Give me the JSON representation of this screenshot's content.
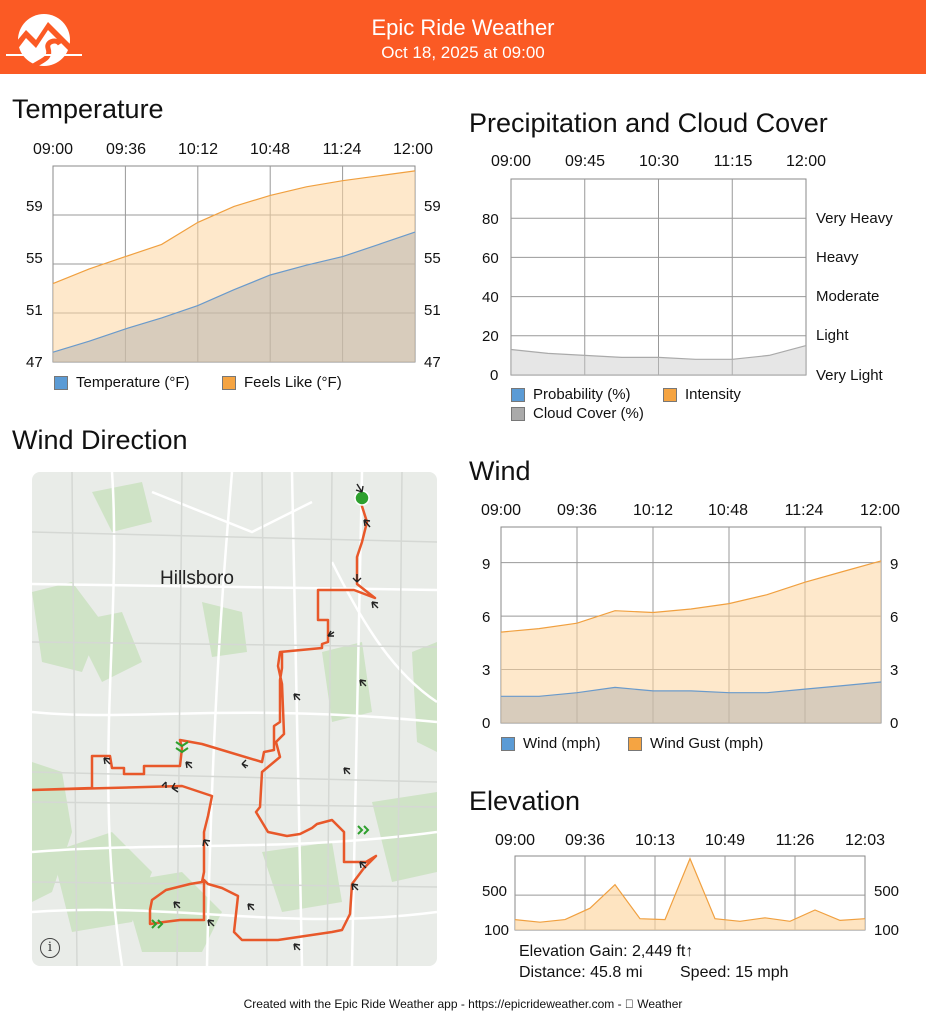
{
  "header": {
    "title": "Epic Ride Weather",
    "subtitle": "Oct 18, 2025 at 09:00",
    "bg_color": "#fb5a24"
  },
  "temperature": {
    "title": "Temperature",
    "x_ticks": [
      "09:00",
      "09:36",
      "10:12",
      "10:48",
      "11:24",
      "12:00"
    ],
    "y_ticks_left": [
      "59",
      "55",
      "51",
      "47"
    ],
    "y_ticks_right": [
      "59",
      "55",
      "51",
      "47"
    ],
    "legend": [
      "Temperature (°F)",
      "Feels Like (°F)"
    ]
  },
  "precip": {
    "title": "Precipitation and Cloud Cover",
    "x_ticks": [
      "09:00",
      "09:45",
      "10:30",
      "11:15",
      "12:00"
    ],
    "y_ticks_left": [
      "80",
      "60",
      "40",
      "20",
      "0"
    ],
    "y_ticks_right": [
      "Very Heavy",
      "Heavy",
      "Moderate",
      "Light",
      "Very Light"
    ],
    "legend": [
      "Probability (%)",
      "Intensity",
      "Cloud Cover (%)"
    ]
  },
  "wind_direction": {
    "title": "Wind Direction",
    "map_label": "Hillsboro",
    "info": "i"
  },
  "wind": {
    "title": "Wind",
    "x_ticks": [
      "09:00",
      "09:36",
      "10:12",
      "10:48",
      "11:24",
      "12:00"
    ],
    "y_ticks_left": [
      "9",
      "6",
      "3",
      "0"
    ],
    "y_ticks_right": [
      "9",
      "6",
      "3",
      "0"
    ],
    "legend": [
      "Wind (mph)",
      "Wind Gust (mph)"
    ]
  },
  "elevation": {
    "title": "Elevation",
    "x_ticks": [
      "09:00",
      "09:36",
      "10:13",
      "10:49",
      "11:26",
      "12:03"
    ],
    "y_ticks_left": [
      "500",
      "100"
    ],
    "y_ticks_right": [
      "500",
      "100"
    ],
    "stats": {
      "gain": "Elevation Gain: 2,449 ft↑",
      "distance": "Distance: 45.8 mi",
      "speed": "Speed: 15 mph"
    }
  },
  "footer": "Created with the Epic Ride Weather app - https://epicrideweather.com -  Weather",
  "colors": {
    "series_blue": "#5b9bd5",
    "series_orange": "#f5a442",
    "series_gray": "#aaaaaa",
    "route": "#e8582a",
    "start": "#2ea02e"
  },
  "chart_data": [
    {
      "type": "area",
      "title": "Temperature",
      "x": [
        "09:00",
        "09:18",
        "09:36",
        "09:54",
        "10:12",
        "10:30",
        "10:48",
        "11:06",
        "11:24",
        "11:42",
        "12:00"
      ],
      "series": [
        {
          "name": "Temperature (°F)",
          "values": [
            47.8,
            48.7,
            49.7,
            50.6,
            51.6,
            52.9,
            54.1,
            54.9,
            55.6,
            56.6,
            57.6
          ]
        },
        {
          "name": "Feels Like (°F)",
          "values": [
            53.4,
            54.6,
            55.6,
            56.6,
            58.4,
            59.7,
            60.6,
            61.3,
            61.8,
            62.2,
            62.6
          ]
        }
      ],
      "ylim": [
        47,
        63
      ]
    },
    {
      "type": "area",
      "title": "Precipitation and Cloud Cover",
      "x": [
        "09:00",
        "09:22",
        "09:45",
        "10:07",
        "10:30",
        "10:52",
        "11:15",
        "11:37",
        "12:00"
      ],
      "series": [
        {
          "name": "Probability (%)",
          "values": [
            0,
            0,
            0,
            0,
            0,
            0,
            0,
            0,
            0
          ]
        },
        {
          "name": "Intensity",
          "values": [
            0,
            0,
            0,
            0,
            0,
            0,
            0,
            0,
            0
          ]
        },
        {
          "name": "Cloud Cover (%)",
          "values": [
            13,
            11,
            10,
            9,
            9,
            8,
            8,
            10,
            15
          ]
        }
      ],
      "ylim": [
        0,
        100
      ]
    },
    {
      "type": "area",
      "title": "Wind",
      "x": [
        "09:00",
        "09:18",
        "09:36",
        "09:54",
        "10:12",
        "10:30",
        "10:48",
        "11:06",
        "11:24",
        "11:42",
        "12:00"
      ],
      "series": [
        {
          "name": "Wind (mph)",
          "values": [
            1.5,
            1.5,
            1.7,
            2.0,
            1.8,
            1.8,
            1.7,
            1.7,
            1.9,
            2.1,
            2.3
          ]
        },
        {
          "name": "Wind Gust (mph)",
          "values": [
            5.1,
            5.3,
            5.6,
            6.3,
            6.2,
            6.4,
            6.7,
            7.2,
            7.9,
            8.5,
            9.1
          ]
        }
      ],
      "ylim": [
        0,
        11
      ]
    },
    {
      "type": "area",
      "title": "Elevation",
      "x": [
        "09:00",
        "09:18",
        "09:36",
        "09:54",
        "10:04",
        "10:13",
        "10:24",
        "10:31",
        "10:40",
        "10:49",
        "11:08",
        "11:20",
        "11:26",
        "11:45",
        "12:03"
      ],
      "series": [
        {
          "name": "Elevation",
          "values": [
            220,
            190,
            220,
            350,
            620,
            230,
            220,
            920,
            230,
            200,
            240,
            200,
            330,
            210,
            230
          ]
        }
      ],
      "ylim": [
        100,
        950
      ]
    }
  ]
}
